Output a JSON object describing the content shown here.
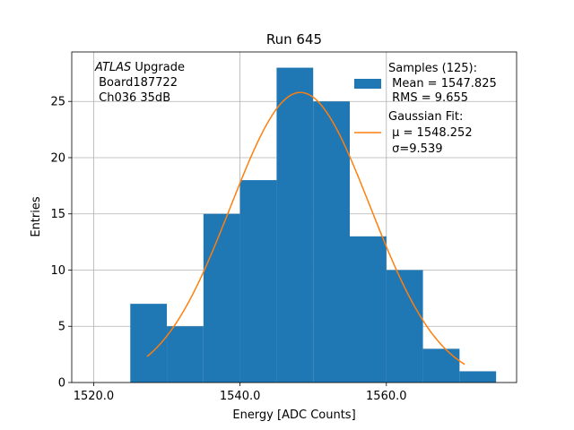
{
  "chart_data": {
    "type": "bar",
    "title": "Run 645",
    "xlabel": "Energy [ADC Counts]",
    "ylabel": "Entries",
    "xlim": [
      1517,
      1577.8
    ],
    "ylim": [
      0,
      29.4
    ],
    "grid": true,
    "x_ticks": [
      1520,
      1540,
      1560
    ],
    "x_tick_labels": [
      "1520.0",
      "1540.0",
      "1560.0"
    ],
    "y_ticks": [
      0,
      5,
      10,
      15,
      20,
      25
    ],
    "y_tick_labels": [
      "0",
      "5",
      "10",
      "15",
      "20",
      "25"
    ],
    "histogram": {
      "name": "Samples (125):",
      "color": "#1f77b4",
      "bin_edges": [
        1525,
        1530,
        1535,
        1540,
        1545,
        1550,
        1555,
        1560,
        1565,
        1570,
        1575
      ],
      "counts": [
        7,
        5,
        15,
        18,
        28,
        25,
        13,
        10,
        3,
        1
      ]
    },
    "fit": {
      "name": "Gaussian Fit:",
      "color": "#ff7f0e",
      "mu": 1548.252,
      "sigma": 9.539,
      "amplitude": 25.8,
      "x_range": [
        1527.3,
        1570.7
      ]
    },
    "annotation_lines": [
      "ATLAS",
      " Upgrade",
      " Board187722",
      " Ch036 35dB"
    ],
    "legend": {
      "position": "top-right",
      "samples_title": "Samples (125):",
      "samples_mean": " Mean = 1547.825",
      "samples_rms": " RMS = 9.655",
      "fit_title": "Gaussian Fit:",
      "fit_mu": " μ = 1548.252",
      "fit_sigma": " σ=9.539"
    }
  }
}
